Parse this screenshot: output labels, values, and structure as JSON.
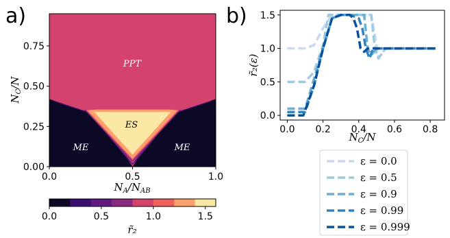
{
  "panel_labels": {
    "a": "a)",
    "b": "b)"
  },
  "chart_data": [
    {
      "type": "heatmap",
      "xlabel": "N_A/N_AB",
      "ylabel": "N_C/N",
      "xlim": [
        0.0,
        1.0
      ],
      "ylim": [
        0.0,
        0.95
      ],
      "x_ticks": [
        "0.0",
        "0.5",
        "1.0"
      ],
      "y_ticks": [
        "0.00",
        "0.25",
        "0.50",
        "0.75"
      ],
      "region_labels": [
        "PPT",
        "ES",
        "ME",
        "ME"
      ],
      "colorbar": {
        "label": "r̃₂",
        "range": [
          0.0,
          1.6
        ],
        "ticks": [
          "0.0",
          "0.5",
          "1.0",
          "1.5"
        ],
        "levels": [
          "#0c0927",
          "#3b0f70",
          "#641a80",
          "#8c2981",
          "#d3436e",
          "#f1605d",
          "#fca06e",
          "#fce8a5"
        ]
      },
      "colors": {
        "ppt": "#d3436e",
        "me": "#0c0927",
        "es": "#fce8a5"
      }
    },
    {
      "type": "line",
      "xlabel": "N_C/N",
      "ylabel": "r̃₂(ε)",
      "xlim": [
        -0.04,
        0.88
      ],
      "ylim": [
        -0.07,
        1.57
      ],
      "x_ticks": [
        "0.0",
        "0.2",
        "0.4",
        "0.6",
        "0.8"
      ],
      "y_ticks": [
        "0.0",
        "0.5",
        "1.0",
        "1.5"
      ],
      "legend_position": "below",
      "series": [
        {
          "name": "ε = 0.0",
          "color": "#c6dbef",
          "x": [
            0.0,
            0.05,
            0.1,
            0.15,
            0.2,
            0.25,
            0.3,
            0.35,
            0.4,
            0.45,
            0.47,
            0.49,
            0.51,
            0.55,
            0.6,
            0.7,
            0.8,
            0.83
          ],
          "y": [
            1.0,
            1.0,
            1.0,
            1.05,
            1.3,
            1.5,
            1.5,
            1.5,
            1.5,
            1.5,
            1.5,
            1.2,
            0.85,
            1.0,
            1.0,
            1.0,
            1.0,
            1.0
          ]
        },
        {
          "name": "ε = 0.5",
          "color": "#9ecae1",
          "x": [
            0.0,
            0.05,
            0.1,
            0.15,
            0.2,
            0.23,
            0.3,
            0.35,
            0.4,
            0.45,
            0.47,
            0.49,
            0.51,
            0.55,
            0.6,
            0.7,
            0.8,
            0.83
          ],
          "y": [
            0.5,
            0.5,
            0.5,
            0.65,
            1.05,
            1.5,
            1.5,
            1.5,
            1.5,
            1.5,
            1.5,
            1.0,
            0.85,
            1.0,
            1.0,
            1.0,
            1.0,
            1.0
          ]
        },
        {
          "name": "ε = 0.9",
          "color": "#6baed6",
          "x": [
            0.0,
            0.05,
            0.1,
            0.15,
            0.2,
            0.25,
            0.3,
            0.35,
            0.4,
            0.43,
            0.45,
            0.47,
            0.5,
            0.55,
            0.6,
            0.7,
            0.8,
            0.83
          ],
          "y": [
            0.1,
            0.1,
            0.1,
            0.55,
            1.0,
            1.45,
            1.5,
            1.5,
            1.5,
            1.5,
            1.0,
            0.9,
            1.0,
            1.0,
            1.0,
            1.0,
            1.0,
            1.0
          ]
        },
        {
          "name": "ε = 0.99",
          "color": "#3182bd",
          "x": [
            0.0,
            0.05,
            0.1,
            0.15,
            0.2,
            0.25,
            0.3,
            0.35,
            0.4,
            0.42,
            0.44,
            0.46,
            0.48,
            0.55,
            0.6,
            0.7,
            0.8,
            0.83
          ],
          "y": [
            0.05,
            0.05,
            0.05,
            0.45,
            1.0,
            1.45,
            1.5,
            1.5,
            1.45,
            1.3,
            1.0,
            0.85,
            1.0,
            1.0,
            1.0,
            1.0,
            1.0,
            1.0
          ]
        },
        {
          "name": "ε = 0.999",
          "color": "#08519c",
          "x": [
            0.0,
            0.05,
            0.09,
            0.15,
            0.2,
            0.25,
            0.3,
            0.35,
            0.37,
            0.39,
            0.41,
            0.43,
            0.45,
            0.5,
            0.6,
            0.7,
            0.8,
            0.83
          ],
          "y": [
            0.0,
            0.0,
            0.0,
            0.45,
            1.0,
            1.45,
            1.5,
            1.5,
            1.45,
            1.3,
            1.0,
            0.95,
            1.0,
            1.0,
            1.0,
            1.0,
            1.0,
            1.0
          ]
        }
      ]
    }
  ]
}
